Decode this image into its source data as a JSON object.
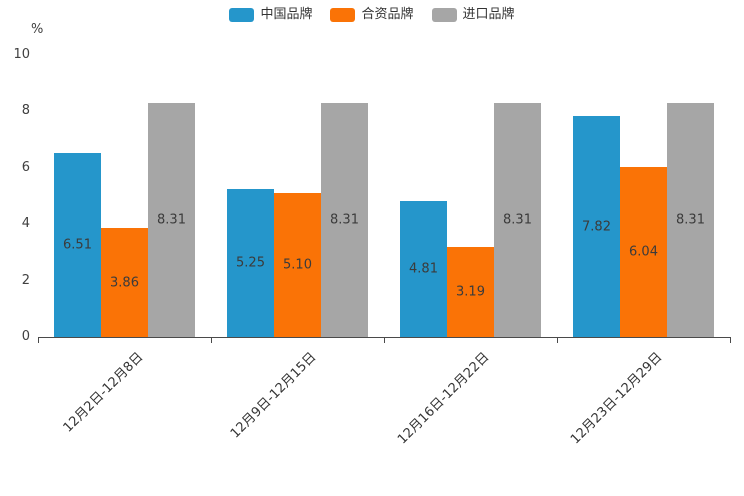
{
  "chart_data": {
    "type": "bar",
    "categories": [
      "12月2日-12月8日",
      "12月9日-12月15日",
      "12月16日-12月22日",
      "12月23日-12月29日"
    ],
    "series": [
      {
        "name": "中国品牌",
        "color": "#2596cb",
        "values": [
          6.51,
          5.25,
          4.81,
          7.82
        ]
      },
      {
        "name": "合资品牌",
        "color": "#fa7306",
        "values": [
          3.86,
          5.1,
          3.19,
          6.04
        ]
      },
      {
        "name": "进口品牌",
        "color": "#a6a6a6",
        "values": [
          8.31,
          8.31,
          8.31,
          8.31
        ]
      }
    ],
    "title": "",
    "xlabel": "",
    "ylabel": "%",
    "ylim": [
      0,
      10
    ],
    "yticks": [
      0,
      2,
      4,
      6,
      8,
      10
    ],
    "legend_position": "top",
    "grid": false,
    "value_label_decimals": 2
  }
}
